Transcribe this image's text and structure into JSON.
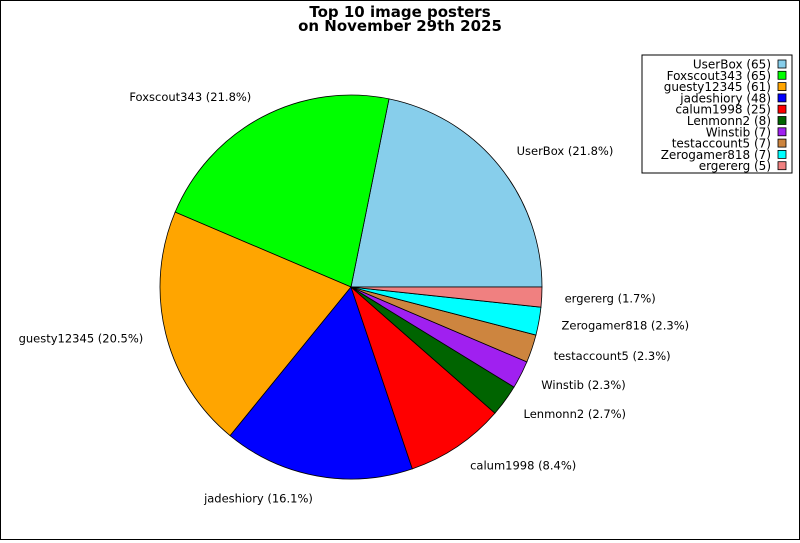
{
  "chart_data": {
    "type": "pie",
    "title": [
      "Top 10 image posters",
      "on November 29th 2025"
    ],
    "legend_position": "top-right",
    "slices": [
      {
        "name": "UserBox",
        "count": 65,
        "percent": 21.8,
        "color": "#87CEEB",
        "legend": "UserBox (65)",
        "label": "UserBox (21.8%)"
      },
      {
        "name": "Foxscout343",
        "count": 65,
        "percent": 21.8,
        "color": "#00FF00",
        "legend": "Foxscout343 (65)",
        "label": "Foxscout343 (21.8%)"
      },
      {
        "name": "guesty12345",
        "count": 61,
        "percent": 20.5,
        "color": "#FFA500",
        "legend": "guesty12345 (61)",
        "label": "guesty12345 (20.5%)"
      },
      {
        "name": "jadeshiory",
        "count": 48,
        "percent": 16.1,
        "color": "#0000FF",
        "legend": "jadeshiory (48)",
        "label": "jadeshiory (16.1%)"
      },
      {
        "name": "calum1998",
        "count": 25,
        "percent": 8.4,
        "color": "#FF0000",
        "legend": "calum1998 (25)",
        "label": "calum1998 (8.4%)"
      },
      {
        "name": "Lenmonn2",
        "count": 8,
        "percent": 2.7,
        "color": "#006400",
        "legend": "Lenmonn2 (8)",
        "label": "Lenmonn2 (2.7%)"
      },
      {
        "name": "Winstib",
        "count": 7,
        "percent": 2.3,
        "color": "#A020F0",
        "legend": "Winstib (7)",
        "label": "Winstib (2.3%)"
      },
      {
        "name": "testaccount5",
        "count": 7,
        "percent": 2.3,
        "color": "#CD853F",
        "legend": "testaccount5 (7)",
        "label": "testaccount5 (2.3%)"
      },
      {
        "name": "Zerogamer818",
        "count": 7,
        "percent": 2.3,
        "color": "#00FFFF",
        "legend": "Zerogamer818 (7)",
        "label": "Zerogamer818 (2.3%)"
      },
      {
        "name": "ergererg",
        "count": 5,
        "percent": 1.7,
        "color": "#F08080",
        "legend": "ergererg (5)",
        "label": "ergererg (1.7%)"
      }
    ]
  }
}
